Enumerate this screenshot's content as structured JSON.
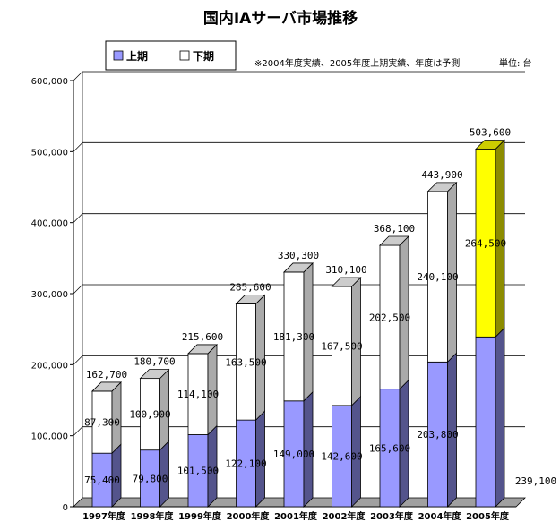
{
  "chart_data": {
    "type": "bar",
    "stacked": true,
    "three_d": true,
    "title": "国内IAサーバ市場推移",
    "note": "※2004年度実績、2005年度上期実績、年度は予測",
    "unit": "単位: 台",
    "categories": [
      "1997年度",
      "1998年度",
      "1999年度",
      "2000年度",
      "2001年度",
      "2002年度",
      "2003年度",
      "2004年度",
      "2005年度"
    ],
    "series": [
      {
        "name": "上期",
        "values": [
          75400,
          79800,
          101500,
          122100,
          149000,
          142600,
          165600,
          203800,
          239100
        ],
        "labels": [
          "75,400",
          "79,800",
          "101,500",
          "122,100",
          "149,000",
          "142,600",
          "165,600",
          "203,800",
          "239,100"
        ]
      },
      {
        "name": "下期",
        "values": [
          87300,
          100900,
          114100,
          163500,
          181300,
          167500,
          202500,
          240100,
          264500
        ],
        "labels": [
          "87,300",
          "100,900",
          "114,100",
          "163,500",
          "181,300",
          "167,500",
          "202,500",
          "240,100",
          "264,500"
        ]
      }
    ],
    "totals": [
      162700,
      180700,
      215600,
      285600,
      330300,
      310100,
      368100,
      443900,
      503600
    ],
    "total_labels": [
      "162,700",
      "180,700",
      "215,600",
      "285,600",
      "330,300",
      "310,100",
      "368,100",
      "443,900",
      "503,600"
    ],
    "highlight_last_second_half_color": "#ffff00",
    "colors": {
      "first_half": "#9999ff",
      "second_half": "#ffffff"
    },
    "ylim": [
      0,
      600000
    ],
    "yticks": [
      0,
      100000,
      200000,
      300000,
      400000,
      500000,
      600000
    ],
    "ytick_labels": [
      "0",
      "100,000",
      "200,000",
      "300,000",
      "400,000",
      "500,000",
      "600,000"
    ],
    "grid": true,
    "legend_position": "top-left"
  }
}
